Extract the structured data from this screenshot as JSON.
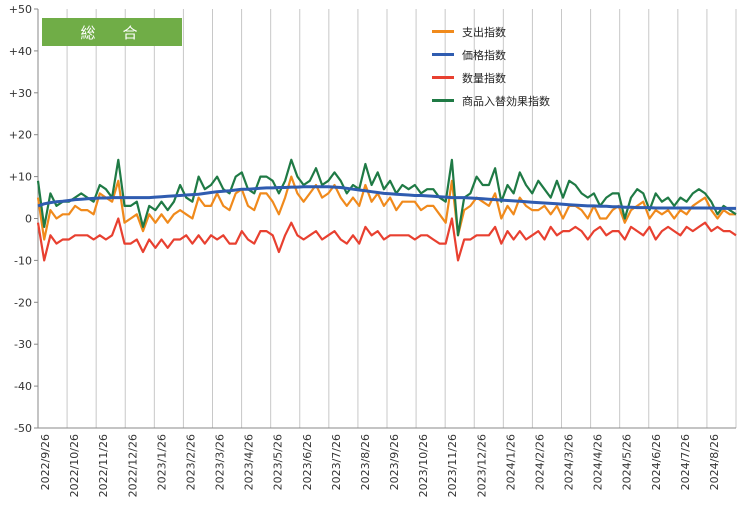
{
  "title_badge": "総　合",
  "chart_data": {
    "type": "line",
    "ylim": [
      -50,
      50
    ],
    "yticks": [
      "+50",
      "+40",
      "+30",
      "+20",
      "+10",
      "0",
      "-10",
      "-20",
      "-30",
      "-40",
      "-50"
    ],
    "xticks": [
      "2022/9/26",
      "2022/10/26",
      "2022/11/26",
      "2022/12/26",
      "2023/1/26",
      "2023/2/26",
      "2023/3/26",
      "2023/4/26",
      "2023/5/26",
      "2023/6/26",
      "2023/7/26",
      "2023/8/26",
      "2023/9/26",
      "2023/10/26",
      "2023/11/26",
      "2023/12/26",
      "2024/1/26",
      "2024/2/26",
      "2024/3/26",
      "2024/4/26",
      "2024/5/26",
      "2024/6/26",
      "2024/7/26",
      "2024/8/26"
    ],
    "legend_position": "top-right",
    "grid": "vertical",
    "series": [
      {
        "name": "支出指数",
        "color": "#f08a1c",
        "values": [
          5,
          -5,
          2,
          0,
          1,
          1,
          3,
          2,
          2,
          1,
          6,
          5,
          4,
          9,
          -1,
          0,
          1,
          -3,
          1,
          -1,
          1,
          -1,
          1,
          2,
          1,
          0,
          5,
          3,
          3,
          6,
          3,
          2,
          6,
          7,
          3,
          2,
          6,
          6,
          4,
          1,
          5,
          10,
          6,
          4,
          6,
          8,
          5,
          6,
          8,
          5,
          3,
          5,
          3,
          8,
          4,
          6,
          3,
          5,
          2,
          4,
          4,
          4,
          2,
          3,
          3,
          1,
          -1,
          9,
          -4,
          2,
          3,
          5,
          4,
          3,
          6,
          0,
          3,
          1,
          5,
          3,
          2,
          2,
          3,
          1,
          3,
          0,
          3,
          3,
          2,
          0,
          3,
          0,
          0,
          2,
          3,
          -1,
          2,
          3,
          4,
          0,
          2,
          1,
          2,
          0,
          2,
          1,
          3,
          4,
          5,
          2,
          0,
          2,
          1,
          1
        ]
      },
      {
        "name": "価格指数",
        "color": "#2f5cb0",
        "values": [
          3,
          3.5,
          3.8,
          4,
          4.1,
          4.3,
          4.5,
          4.6,
          4.7,
          4.8,
          4.9,
          4.9,
          5,
          5,
          5,
          5,
          5,
          5,
          5,
          5.1,
          5.2,
          5.3,
          5.4,
          5.5,
          5.6,
          5.7,
          5.8,
          6,
          6.2,
          6.4,
          6.5,
          6.6,
          6.8,
          7,
          7,
          7.1,
          7.2,
          7.3,
          7.3,
          7.4,
          7.4,
          7.5,
          7.5,
          7.6,
          7.6,
          7.6,
          7.6,
          7.6,
          7.5,
          7.4,
          7.2,
          7,
          6.8,
          6.6,
          6.4,
          6.2,
          6,
          5.9,
          5.8,
          5.7,
          5.6,
          5.5,
          5.5,
          5.4,
          5.3,
          5.2,
          5.1,
          5,
          5,
          5,
          4.9,
          4.8,
          4.7,
          4.6,
          4.5,
          4.4,
          4.3,
          4.2,
          4.1,
          4,
          3.9,
          3.8,
          3.7,
          3.6,
          3.5,
          3.4,
          3.3,
          3.2,
          3.1,
          3,
          3,
          2.9,
          2.9,
          2.8,
          2.8,
          2.7,
          2.7,
          2.6,
          2.6,
          2.6,
          2.5,
          2.5,
          2.5,
          2.5,
          2.5,
          2.5,
          2.5,
          2.5,
          2.5,
          2.5,
          2.4,
          2.4,
          2.4,
          2.4
        ]
      },
      {
        "name": "数量指数",
        "color": "#e84030",
        "values": [
          -1,
          -10,
          -4,
          -6,
          -5,
          -5,
          -4,
          -4,
          -4,
          -5,
          -4,
          -5,
          -4,
          0,
          -6,
          -6,
          -5,
          -8,
          -5,
          -7,
          -5,
          -7,
          -5,
          -5,
          -4,
          -6,
          -4,
          -6,
          -4,
          -5,
          -4,
          -6,
          -6,
          -3,
          -5,
          -6,
          -3,
          -3,
          -4,
          -8,
          -4,
          -1,
          -4,
          -5,
          -4,
          -3,
          -5,
          -4,
          -3,
          -5,
          -6,
          -4,
          -6,
          -2,
          -4,
          -3,
          -5,
          -4,
          -4,
          -4,
          -4,
          -5,
          -4,
          -4,
          -5,
          -6,
          -6,
          0,
          -10,
          -5,
          -5,
          -4,
          -4,
          -4,
          -2,
          -6,
          -3,
          -5,
          -3,
          -5,
          -4,
          -3,
          -5,
          -2,
          -4,
          -3,
          -3,
          -2,
          -3,
          -5,
          -3,
          -2,
          -4,
          -3,
          -3,
          -5,
          -2,
          -3,
          -4,
          -2,
          -5,
          -3,
          -2,
          -3,
          -4,
          -2,
          -3,
          -2,
          -1,
          -3,
          -2,
          -3,
          -3,
          -4
        ]
      },
      {
        "name": "商品入替効果指数",
        "color": "#1f7a45",
        "values": [
          9,
          -2,
          6,
          3,
          4,
          4,
          5,
          6,
          5,
          4,
          8,
          7,
          5,
          14,
          3,
          3,
          4,
          -2,
          3,
          2,
          4,
          2,
          4,
          8,
          5,
          4,
          10,
          7,
          8,
          10,
          7,
          6,
          10,
          11,
          7,
          6,
          10,
          10,
          9,
          6,
          9,
          14,
          10,
          8,
          9,
          12,
          8,
          9,
          11,
          9,
          6,
          8,
          7,
          13,
          8,
          11,
          7,
          9,
          6,
          8,
          7,
          8,
          6,
          7,
          7,
          5,
          4,
          14,
          -4,
          5,
          6,
          10,
          8,
          8,
          12,
          4,
          8,
          6,
          11,
          8,
          6,
          9,
          7,
          5,
          9,
          5,
          9,
          8,
          6,
          5,
          6,
          3,
          5,
          6,
          6,
          0,
          5,
          7,
          6,
          2,
          6,
          4,
          5,
          3,
          5,
          4,
          6,
          7,
          6,
          4,
          1,
          3,
          2,
          1
        ]
      }
    ]
  }
}
